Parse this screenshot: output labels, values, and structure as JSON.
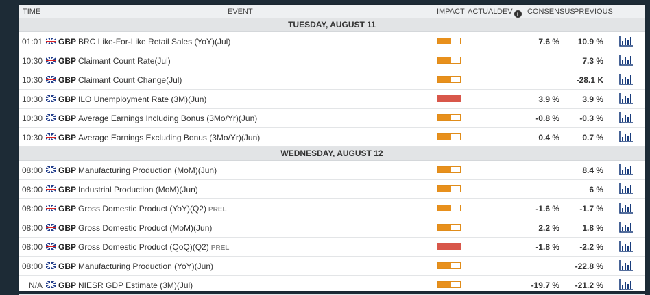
{
  "colors": {
    "impact_medium": "#e8901c",
    "impact_high": "#d8574a",
    "chart_icon": "#1a3d7c"
  },
  "header": {
    "time": "TIME",
    "event": "EVENT",
    "impact": "IMPACT",
    "actual": "ACTUAL",
    "dev": "DEV",
    "info_icon": "info-icon",
    "consensus": "CONSENSUS",
    "previous": "PREVIOUS"
  },
  "days": [
    {
      "label": "TUESDAY, AUGUST 11",
      "events": [
        {
          "time": "01:01",
          "currency": "GBP",
          "name": "BRC Like-For-Like Retail Sales (YoY)(Jul)",
          "prel": "",
          "impact": "medium",
          "impact_level": 0.6,
          "consensus": "7.6 %",
          "previous": "10.9 %"
        },
        {
          "time": "10:30",
          "currency": "GBP",
          "name": "Claimant Count Rate(Jul)",
          "prel": "",
          "impact": "medium",
          "impact_level": 0.6,
          "consensus": "",
          "previous": "7.3 %"
        },
        {
          "time": "10:30",
          "currency": "GBP",
          "name": "Claimant Count Change(Jul)",
          "prel": "",
          "impact": "medium",
          "impact_level": 0.6,
          "consensus": "",
          "previous": "-28.1 K"
        },
        {
          "time": "10:30",
          "currency": "GBP",
          "name": "ILO Unemployment Rate (3M)(Jun)",
          "prel": "",
          "impact": "high",
          "impact_level": 1.0,
          "consensus": "3.9 %",
          "previous": "3.9 %"
        },
        {
          "time": "10:30",
          "currency": "GBP",
          "name": "Average Earnings Including Bonus (3Mo/Yr)(Jun)",
          "prel": "",
          "impact": "medium",
          "impact_level": 0.6,
          "consensus": "-0.8 %",
          "previous": "-0.3 %"
        },
        {
          "time": "10:30",
          "currency": "GBP",
          "name": "Average Earnings Excluding Bonus (3Mo/Yr)(Jun)",
          "prel": "",
          "impact": "medium",
          "impact_level": 0.6,
          "consensus": "0.4 %",
          "previous": "0.7 %"
        }
      ]
    },
    {
      "label": "WEDNESDAY, AUGUST 12",
      "events": [
        {
          "time": "08:00",
          "currency": "GBP",
          "name": "Manufacturing Production (MoM)(Jun)",
          "prel": "",
          "impact": "medium",
          "impact_level": 0.6,
          "consensus": "",
          "previous": "8.4 %"
        },
        {
          "time": "08:00",
          "currency": "GBP",
          "name": "Industrial Production (MoM)(Jun)",
          "prel": "",
          "impact": "medium",
          "impact_level": 0.6,
          "consensus": "",
          "previous": "6 %"
        },
        {
          "time": "08:00",
          "currency": "GBP",
          "name": "Gross Domestic Product (YoY)(Q2)",
          "prel": "PREL",
          "impact": "medium",
          "impact_level": 0.6,
          "consensus": "-1.6 %",
          "previous": "-1.7 %"
        },
        {
          "time": "08:00",
          "currency": "GBP",
          "name": "Gross Domestic Product (MoM)(Jun)",
          "prel": "",
          "impact": "medium",
          "impact_level": 0.6,
          "consensus": "2.2 %",
          "previous": "1.8 %"
        },
        {
          "time": "08:00",
          "currency": "GBP",
          "name": "Gross Domestic Product (QoQ)(Q2)",
          "prel": "PREL",
          "impact": "high",
          "impact_level": 1.0,
          "consensus": "-1.8 %",
          "previous": "-2.2 %"
        },
        {
          "time": "08:00",
          "currency": "GBP",
          "name": "Manufacturing Production (YoY)(Jun)",
          "prel": "",
          "impact": "medium",
          "impact_level": 0.6,
          "consensus": "",
          "previous": "-22.8 %"
        },
        {
          "time": "N/A",
          "currency": "GBP",
          "name": "NIESR GDP Estimate (3M)(Jul)",
          "prel": "",
          "impact": "medium",
          "impact_level": 0.6,
          "consensus": "-19.7 %",
          "previous": "-21.2 %"
        }
      ]
    }
  ]
}
